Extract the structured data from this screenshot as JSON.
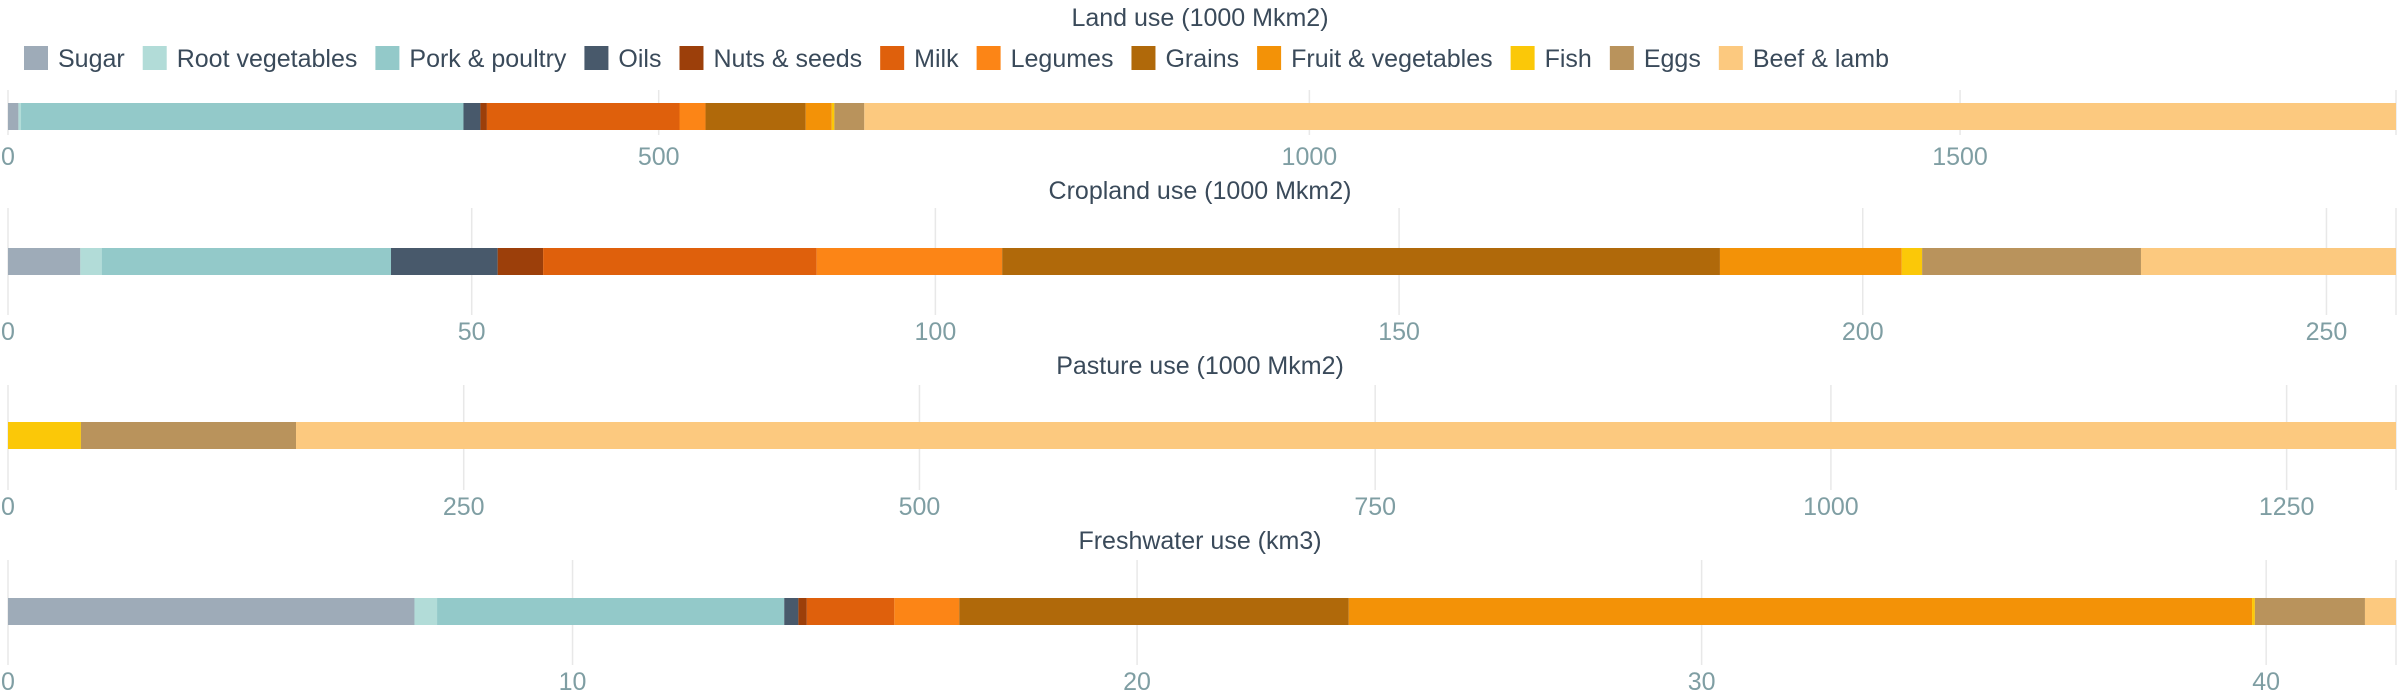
{
  "chart_data": {
    "type": "bar",
    "orientation": "horizontal-stacked",
    "legend": {
      "placement": "top-left",
      "entries": [
        {
          "name": "Sugar",
          "color": "#9eabb8"
        },
        {
          "name": "Root vegetables",
          "color": "#b2dcd8"
        },
        {
          "name": "Pork & poultry",
          "color": "#93c9c9"
        },
        {
          "name": "Oils",
          "color": "#48596b"
        },
        {
          "name": "Nuts & seeds",
          "color": "#9c3f0a"
        },
        {
          "name": "Milk",
          "color": "#df600c"
        },
        {
          "name": "Legumes",
          "color": "#fc8516"
        },
        {
          "name": "Grains",
          "color": "#b0690a"
        },
        {
          "name": "Fruit & vegetables",
          "color": "#f39207"
        },
        {
          "name": "Fish",
          "color": "#fbc808"
        },
        {
          "name": "Eggs",
          "color": "#b9935c"
        },
        {
          "name": "Beef & lamb",
          "color": "#fcc97f"
        }
      ]
    },
    "panels": [
      {
        "title": "Land use (1000 Mkm2)",
        "xlim": [
          0,
          1835
        ],
        "ticks": [
          0,
          500,
          1000,
          1500
        ],
        "tick_labels": [
          "0",
          "500",
          "1000",
          "1500"
        ],
        "grid": true,
        "values": [
          8,
          2,
          340,
          13,
          5,
          148,
          20,
          77,
          20,
          2,
          23,
          1177
        ]
      },
      {
        "title": "Cropland use (1000 Mkm2)",
        "xlim": [
          0,
          257.5
        ],
        "ticks": [
          0,
          50,
          100,
          150,
          200,
          250
        ],
        "tick_labels": [
          "0",
          "50",
          "100",
          "150",
          "200",
          "250"
        ],
        "grid": true,
        "values": [
          7.8,
          2.3,
          31.2,
          11.5,
          4.9,
          29.5,
          20,
          77.4,
          19.6,
          2.2,
          23.6,
          27.5
        ]
      },
      {
        "title": "Pasture use (1000 Mkm2)",
        "xlim": [
          0,
          1310
        ],
        "ticks": [
          0,
          250,
          500,
          750,
          1000,
          1250
        ],
        "tick_labels": [
          "0",
          "250",
          "500",
          "750",
          "1000",
          "1250"
        ],
        "grid": true,
        "values": [
          0,
          0,
          0,
          0,
          0,
          0,
          0,
          0,
          0,
          40,
          118,
          1152
        ]
      },
      {
        "title": "Freshwater use (km3)",
        "xlim": [
          0,
          42.3
        ],
        "ticks": [
          0,
          10,
          20,
          30,
          40
        ],
        "tick_labels": [
          "0",
          "10",
          "20",
          "30",
          "40"
        ],
        "grid": true,
        "values": [
          7.2,
          0.4,
          6.15,
          0.25,
          0.15,
          1.55,
          1.15,
          6.9,
          16,
          0.05,
          1.95,
          0.55
        ]
      }
    ]
  }
}
